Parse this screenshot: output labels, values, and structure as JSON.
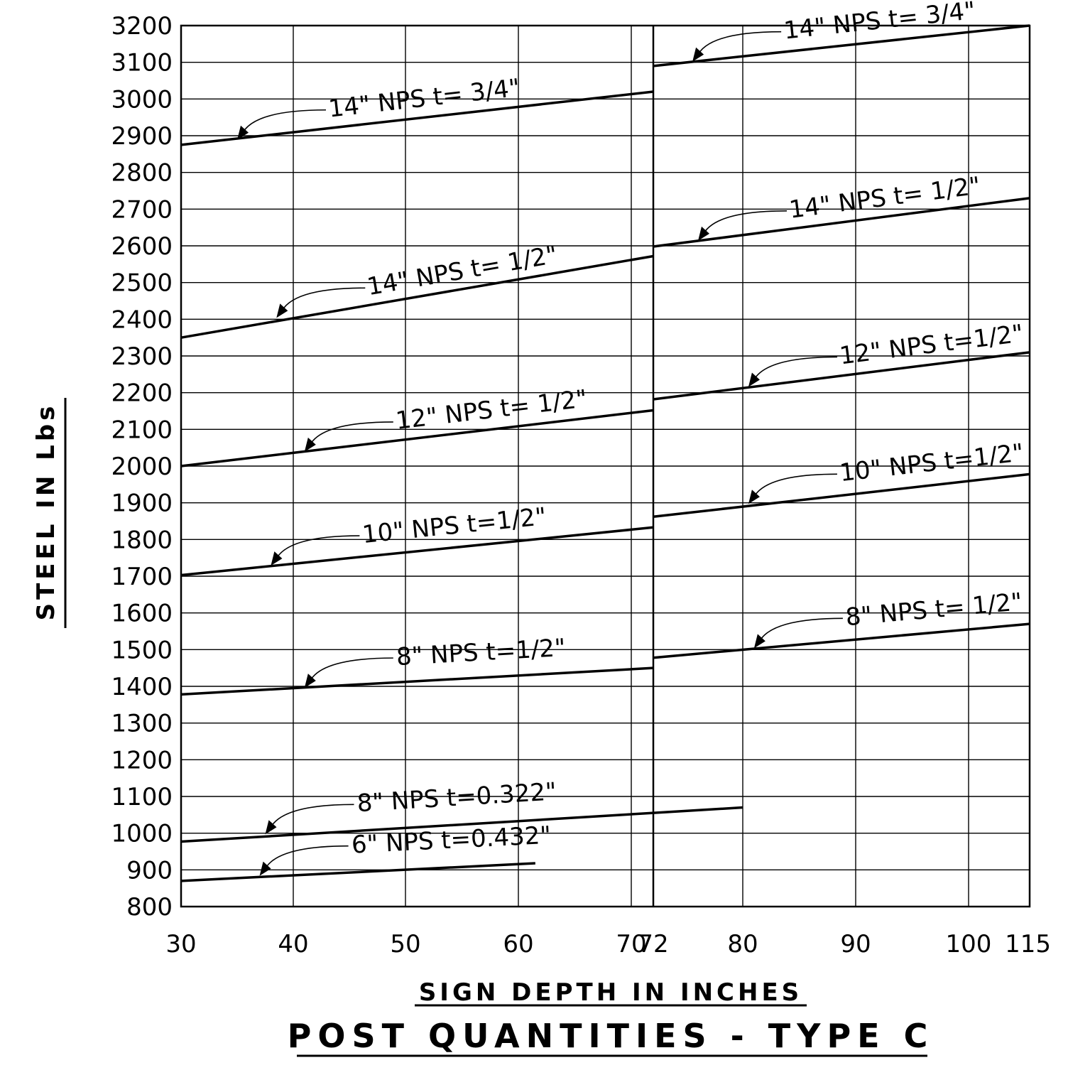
{
  "chart_data": {
    "type": "line",
    "title": "POST QUANTITIES - TYPE C",
    "xlabel": "SIGN DEPTH IN INCHES",
    "ylabel": "STEEL IN Lbs",
    "xlim": [
      30,
      115
    ],
    "ylim": [
      800,
      3200
    ],
    "grid": true,
    "x_ticks": [
      30,
      40,
      50,
      60,
      70,
      72,
      80,
      90,
      100,
      115
    ],
    "y_ticks": [
      800,
      900,
      1000,
      1100,
      1200,
      1300,
      1400,
      1500,
      1600,
      1700,
      1800,
      1900,
      2000,
      2100,
      2200,
      2300,
      2400,
      2500,
      2600,
      2700,
      2800,
      2900,
      3000,
      3100,
      3200
    ],
    "series": [
      {
        "name": "14\" NPS  t= 3/4\"",
        "x": [
          30,
          72
        ],
        "y": [
          2875,
          3020
        ],
        "label_at": {
          "x": 35,
          "y": 2885
        }
      },
      {
        "name": "14\" NPS  t= 1/2\"",
        "x": [
          30,
          72
        ],
        "y": [
          2350,
          2572
        ],
        "label_at": {
          "x": 38.5,
          "y": 2400
        }
      },
      {
        "name": "12\" NPS  t= 1/2\"",
        "x": [
          30,
          72
        ],
        "y": [
          2000,
          2152
        ],
        "label_at": {
          "x": 41,
          "y": 2035
        }
      },
      {
        "name": "10\" NPS  t=1/2\"",
        "x": [
          30,
          72
        ],
        "y": [
          1703,
          1833
        ],
        "label_at": {
          "x": 38,
          "y": 1725
        }
      },
      {
        "name": "8\" NPS  t=1/2\"",
        "x": [
          30,
          72
        ],
        "y": [
          1378,
          1450
        ],
        "label_at": {
          "x": 41,
          "y": 1392
        }
      },
      {
        "name": "8\" NPS  t=0.322\"",
        "x": [
          30,
          80
        ],
        "y": [
          977,
          1070
        ],
        "label_at": {
          "x": 37.5,
          "y": 993
        }
      },
      {
        "name": "6\" NPS  t=0.432\"",
        "x": [
          30,
          61.5
        ],
        "y": [
          870,
          918
        ],
        "label_at": {
          "x": 37,
          "y": 880
        }
      },
      {
        "name": "14\" NPS  t= 3/4\"",
        "x": [
          72,
          115
        ],
        "y": [
          3090,
          3200
        ],
        "label_at": {
          "x": 75.5,
          "y": 3098
        }
      },
      {
        "name": "14\" NPS  t= 1/2\"",
        "x": [
          72,
          115
        ],
        "y": [
          2598,
          2730
        ],
        "label_at": {
          "x": 76,
          "y": 2610
        }
      },
      {
        "name": "12\" NPS  t=1/2\"",
        "x": [
          72,
          115
        ],
        "y": [
          2182,
          2310
        ],
        "label_at": {
          "x": 80.5,
          "y": 2212
        }
      },
      {
        "name": "10\" NPS  t=1/2\"",
        "x": [
          72,
          115
        ],
        "y": [
          1862,
          1978
        ],
        "label_at": {
          "x": 80.5,
          "y": 1893
        }
      },
      {
        "name": "8\" NPS  t= 1/2\"",
        "x": [
          72,
          115
        ],
        "y": [
          1478,
          1570
        ],
        "label_at": {
          "x": 81,
          "y": 1500
        }
      }
    ]
  }
}
